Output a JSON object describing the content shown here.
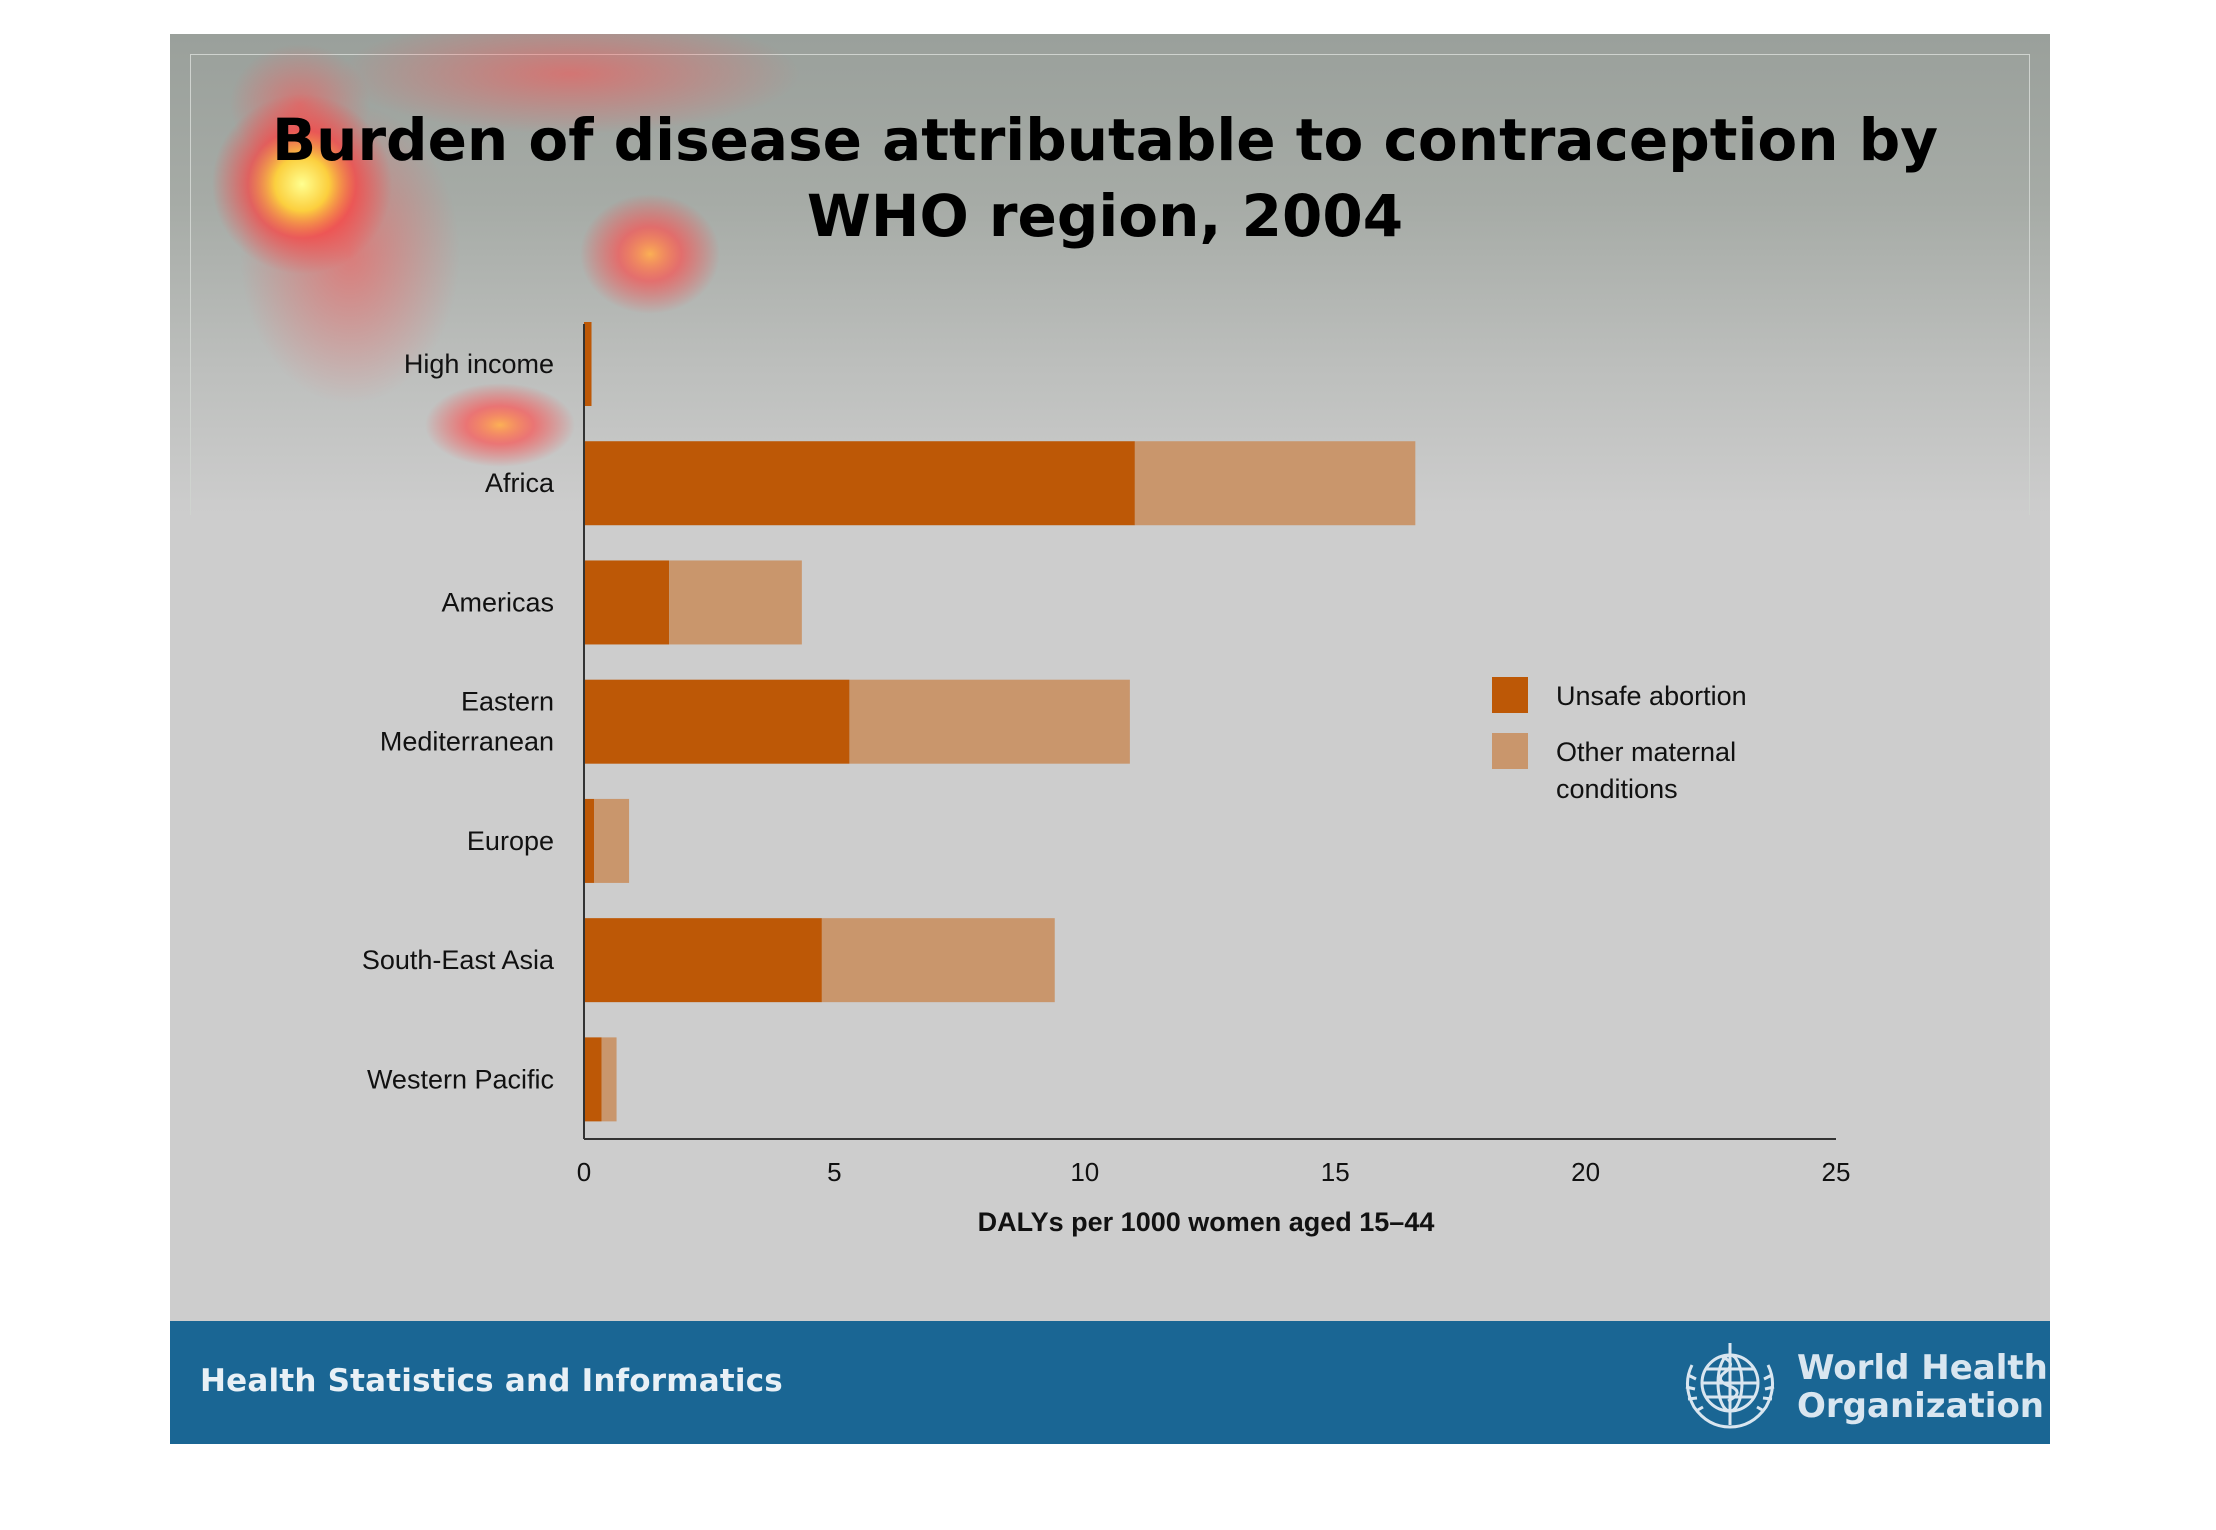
{
  "slide": {
    "title_line1": "Burden of disease attributable to contraception by",
    "title_line2": "WHO region, 2004",
    "footer_text": "Health Statistics and Informatics",
    "logo_line1": "World Health",
    "logo_line2": "Organization"
  },
  "colors": {
    "unsafe_abortion": "#bd5806",
    "other_maternal": "#c9966c",
    "footer": "#1a6694"
  },
  "chart_data": {
    "type": "bar",
    "orientation": "horizontal",
    "stacked": true,
    "categories": [
      "High income",
      "Africa",
      "Americas",
      "Eastern Mediterranean",
      "Europe",
      "South-East Asia",
      "Western Pacific"
    ],
    "category_labels": [
      [
        "High income"
      ],
      [
        "Africa"
      ],
      [
        "Americas"
      ],
      [
        "Eastern",
        "Mediterranean"
      ],
      [
        "Europe"
      ],
      [
        "South-East Asia"
      ],
      [
        "Western Pacific"
      ]
    ],
    "series": [
      {
        "name": "Unsafe abortion",
        "values": [
          0.15,
          11.0,
          1.7,
          5.3,
          0.2,
          4.75,
          0.35
        ]
      },
      {
        "name": "Other maternal conditions",
        "values": [
          0.0,
          5.6,
          2.65,
          5.6,
          0.7,
          4.65,
          0.3
        ]
      }
    ],
    "legend_labels": [
      [
        "Unsafe abortion"
      ],
      [
        "Other maternal",
        "conditions"
      ]
    ],
    "xlim": [
      0,
      25
    ],
    "xticks": [
      "0",
      "5",
      "10",
      "15",
      "20",
      "25"
    ],
    "xlabel": "DALYs per 1000 women aged 15–44",
    "ylabel": "",
    "grid": false,
    "legend_position": "right"
  }
}
